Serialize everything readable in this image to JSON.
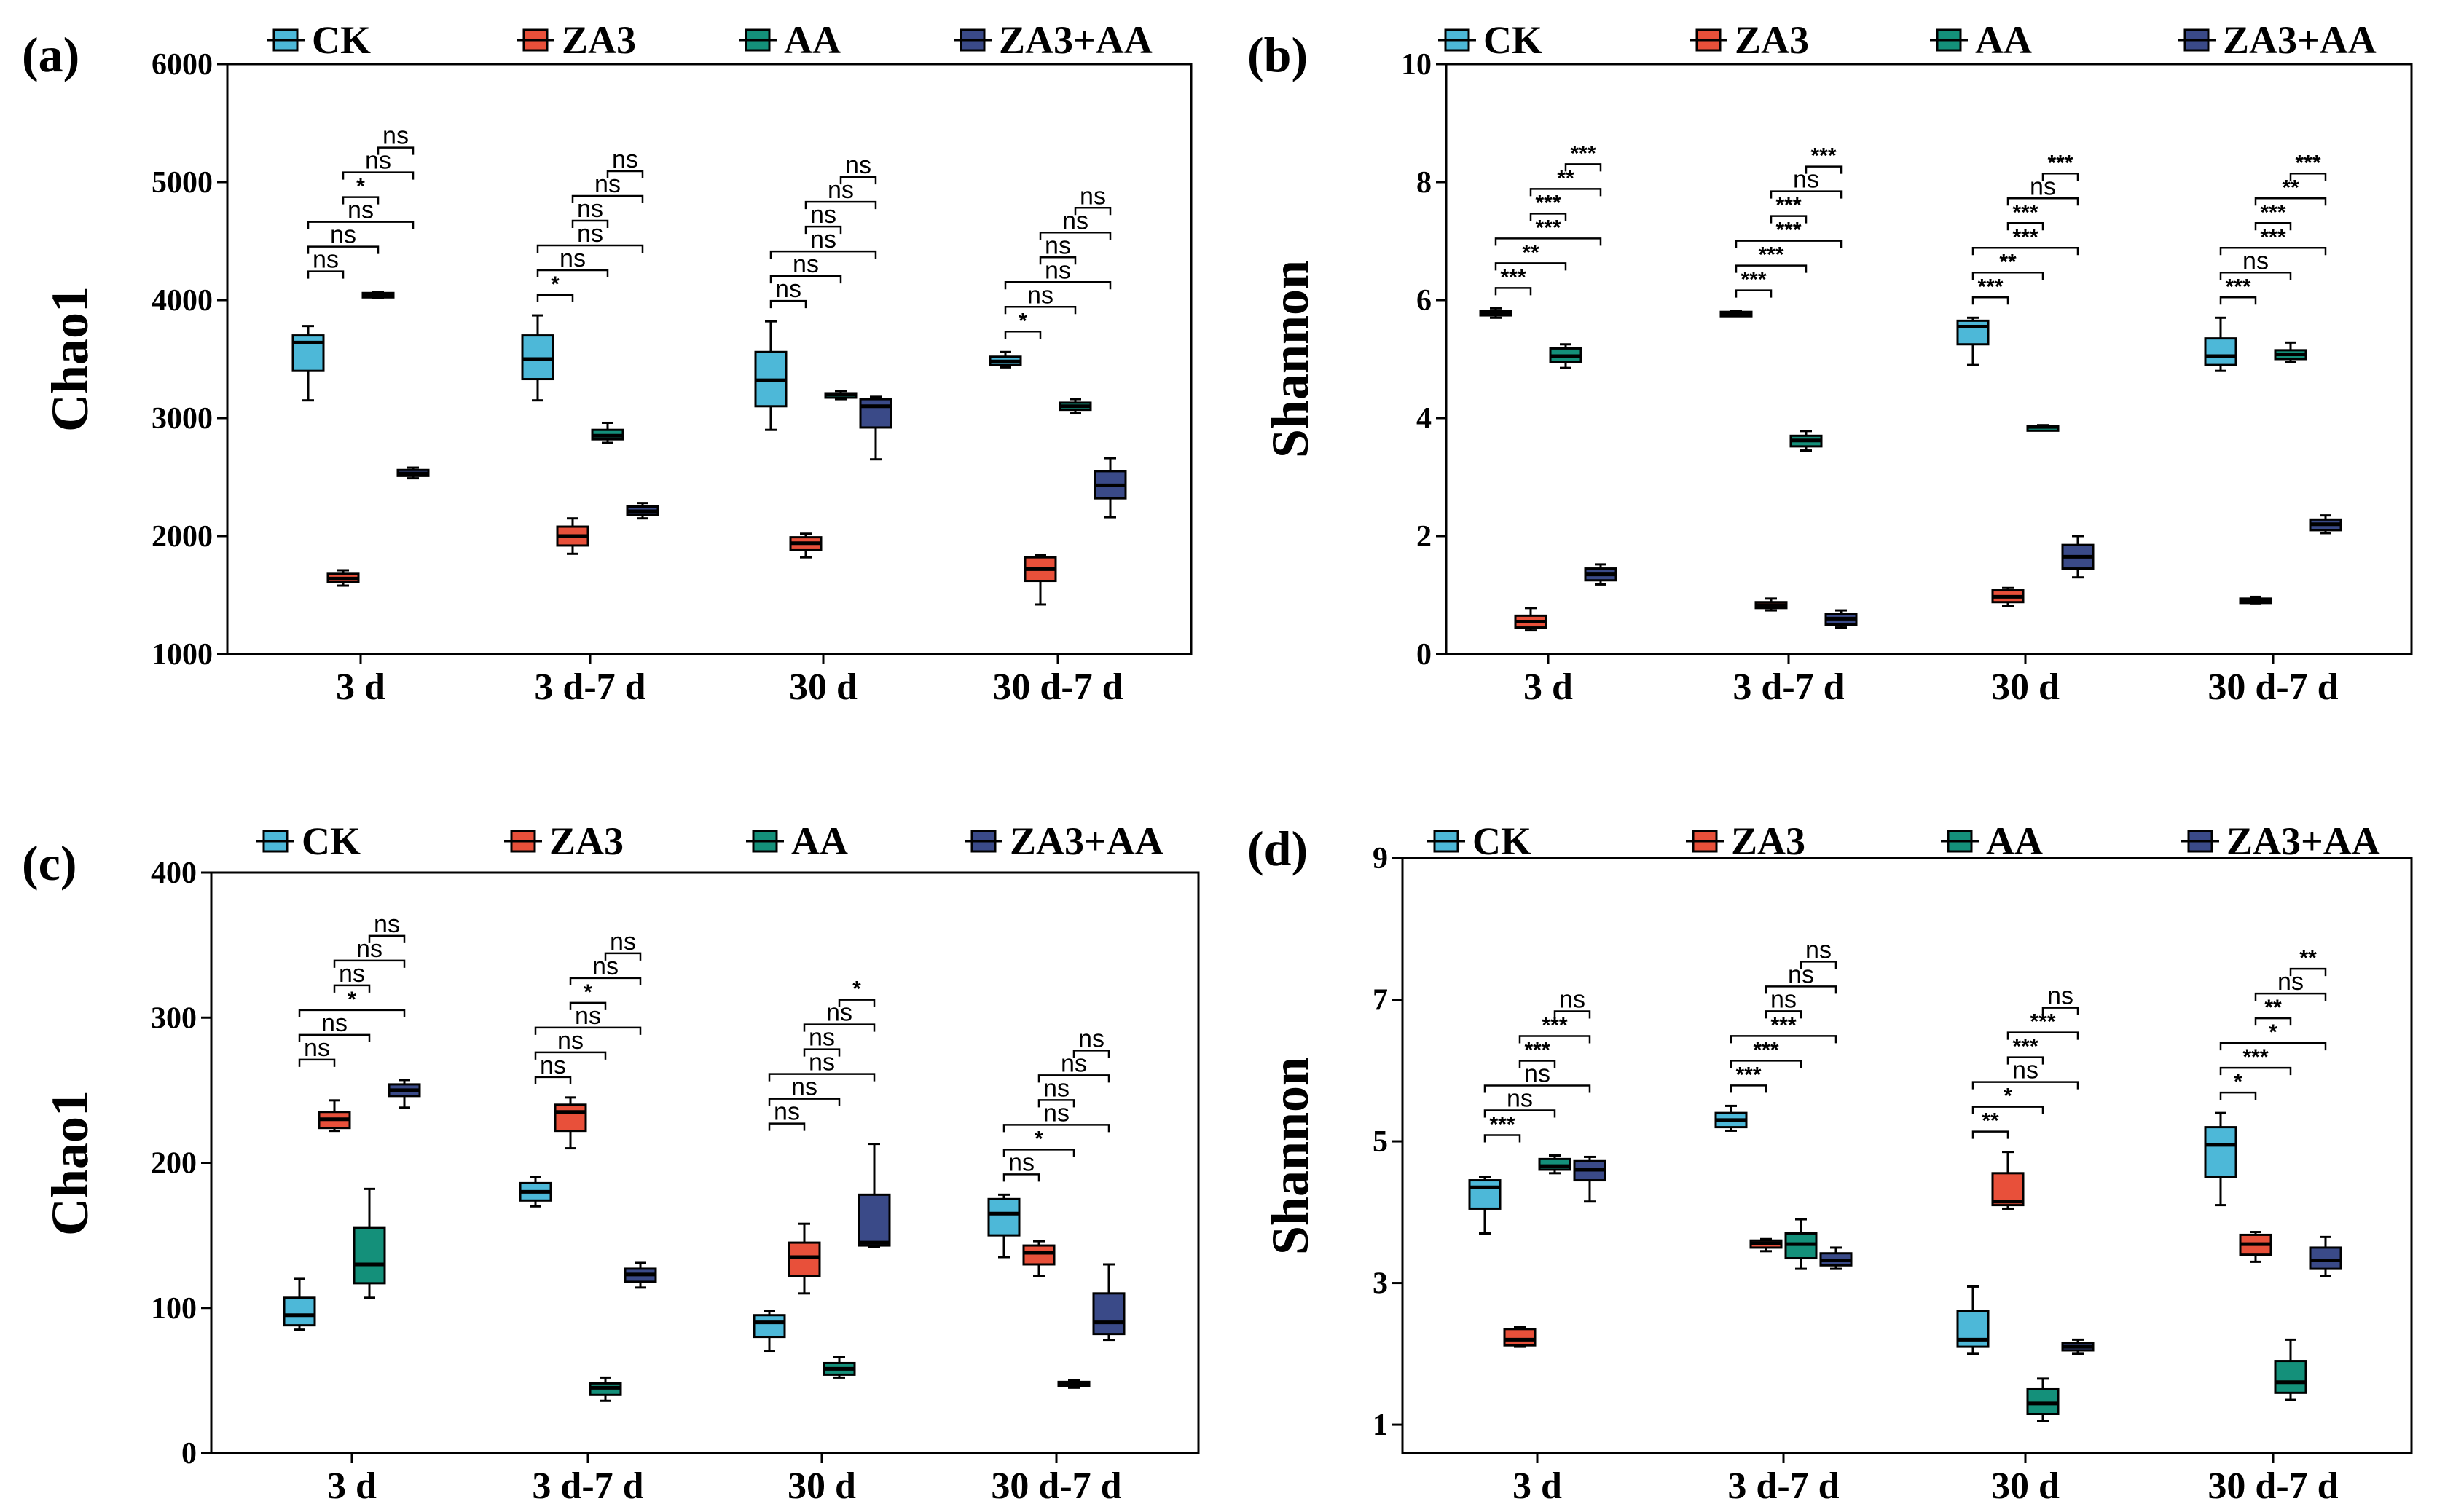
{
  "colors": {
    "CK": "#4DB8D8",
    "ZA3": "#E8503A",
    "AA": "#14907A",
    "ZA3+AA": "#3A4A88"
  },
  "legend_names": [
    "CK",
    "ZA3",
    "AA",
    "ZA3+AA"
  ],
  "categories": [
    "3 d",
    "3 d-7 d",
    "30 d",
    "30 d-7 d"
  ],
  "chart_data": [
    {
      "type": "box",
      "panel": "(a)",
      "ylabel": "Chao1",
      "ylim": [
        1000,
        6000
      ],
      "yticks": [
        "1000",
        "2000",
        "3000",
        "4000",
        "5000",
        "6000"
      ],
      "ytick_values": [
        1000,
        2000,
        3000,
        4000,
        5000,
        6000
      ],
      "series": [
        {
          "name": "CK",
          "boxes": [
            [
              3150,
              3400,
              3640,
              3700,
              3780
            ],
            [
              3150,
              3330,
              3500,
              3700,
              3870
            ],
            [
              2900,
              3100,
              3320,
              3560,
              3820
            ],
            [
              3430,
              3450,
              3480,
              3520,
              3560
            ]
          ]
        },
        {
          "name": "ZA3",
          "boxes": [
            [
              1580,
              1610,
              1640,
              1680,
              1710
            ],
            [
              1850,
              1920,
              2000,
              2080,
              2150
            ],
            [
              1820,
              1880,
              1940,
              1990,
              2020
            ],
            [
              1420,
              1620,
              1720,
              1820,
              1840
            ]
          ]
        },
        {
          "name": "AA",
          "boxes": [
            [
              4020,
              4030,
              4050,
              4060,
              4070
            ],
            [
              2790,
              2820,
              2850,
              2900,
              2960
            ],
            [
              3160,
              3180,
              3200,
              3210,
              3230
            ],
            [
              3040,
              3070,
              3100,
              3130,
              3160
            ]
          ]
        },
        {
          "name": "ZA3+AA",
          "boxes": [
            [
              2490,
              2510,
              2530,
              2560,
              2580
            ],
            [
              2150,
              2180,
              2210,
              2250,
              2280
            ],
            [
              2650,
              2920,
              3100,
              3160,
              3180
            ],
            [
              2160,
              2320,
              2430,
              2550,
              2660
            ]
          ]
        }
      ],
      "significance": [
        [
          [
            "ns",
            "ns",
            "ns",
            "*",
            "ns",
            "ns"
          ],
          [
            "*",
            "ns",
            "ns",
            "ns",
            "ns",
            "ns"
          ],
          [
            "ns",
            "ns",
            "ns",
            "ns",
            "ns",
            "ns"
          ],
          [
            "*",
            "ns",
            "ns",
            "ns",
            "ns",
            "ns"
          ]
        ]
      ]
    },
    {
      "type": "box",
      "panel": "(b)",
      "ylabel": "Shannon",
      "ylim": [
        0,
        10
      ],
      "yticks": [
        "0",
        "2",
        "4",
        "6",
        "8",
        "10"
      ],
      "ytick_values": [
        0,
        2,
        4,
        6,
        8,
        10
      ],
      "series": [
        {
          "name": "CK",
          "boxes": [
            [
              5.7,
              5.74,
              5.78,
              5.82,
              5.86
            ],
            [
              5.74,
              5.76,
              5.78,
              5.8,
              5.82
            ],
            [
              4.9,
              5.25,
              5.55,
              5.65,
              5.7
            ],
            [
              4.8,
              4.9,
              5.05,
              5.35,
              5.7
            ]
          ]
        },
        {
          "name": "ZA3",
          "boxes": [
            [
              0.4,
              0.45,
              0.55,
              0.65,
              0.78
            ],
            [
              0.74,
              0.78,
              0.83,
              0.88,
              0.94
            ],
            [
              0.82,
              0.88,
              0.97,
              1.08,
              1.12
            ],
            [
              0.86,
              0.88,
              0.92,
              0.94,
              0.97
            ]
          ]
        },
        {
          "name": "AA",
          "boxes": [
            [
              4.85,
              4.95,
              5.05,
              5.18,
              5.25
            ],
            [
              3.45,
              3.52,
              3.62,
              3.7,
              3.78
            ],
            [
              3.82,
              3.84,
              3.85,
              3.86,
              3.88
            ],
            [
              4.95,
              5.0,
              5.08,
              5.15,
              5.28
            ]
          ]
        },
        {
          "name": "ZA3+AA",
          "boxes": [
            [
              1.18,
              1.25,
              1.35,
              1.45,
              1.52
            ],
            [
              0.45,
              0.5,
              0.6,
              0.68,
              0.74
            ],
            [
              1.3,
              1.45,
              1.65,
              1.85,
              2.0
            ],
            [
              2.05,
              2.1,
              2.2,
              2.28,
              2.35
            ]
          ]
        }
      ],
      "significance": [
        [
          [
            "***",
            "**",
            "***",
            "***",
            "**",
            "***"
          ],
          [
            "***",
            "***",
            "***",
            "***",
            "ns",
            "***"
          ],
          [
            "***",
            "**",
            "***",
            "***",
            "ns",
            "***"
          ],
          [
            "***",
            "ns",
            "***",
            "***",
            "**",
            "***"
          ]
        ]
      ]
    },
    {
      "type": "box",
      "panel": "(c)",
      "ylabel": "Chao1",
      "ylim": [
        0,
        400
      ],
      "yticks": [
        "0",
        "100",
        "200",
        "300",
        "400"
      ],
      "ytick_values": [
        0,
        100,
        200,
        300,
        400
      ],
      "series": [
        {
          "name": "CK",
          "boxes": [
            [
              85,
              88,
              95,
              107,
              120
            ],
            [
              170,
              174,
              180,
              186,
              190
            ],
            [
              70,
              80,
              90,
              95,
              98
            ],
            [
              135,
              150,
              165,
              175,
              178
            ]
          ]
        },
        {
          "name": "ZA3",
          "boxes": [
            [
              222,
              224,
              230,
              235,
              243
            ],
            [
              210,
              222,
              235,
              240,
              245
            ],
            [
              110,
              122,
              135,
              145,
              158
            ],
            [
              122,
              130,
              138,
              143,
              146
            ]
          ]
        },
        {
          "name": "AA",
          "boxes": [
            [
              107,
              117,
              130,
              155,
              182
            ],
            [
              36,
              40,
              45,
              48,
              52
            ],
            [
              52,
              54,
              58,
              62,
              66
            ],
            [
              45,
              46,
              48,
              49,
              50
            ]
          ]
        },
        {
          "name": "ZA3+AA",
          "boxes": [
            [
              238,
              246,
              250,
              254,
              257
            ],
            [
              114,
              118,
              123,
              127,
              131
            ],
            [
              142,
              143,
              145,
              178,
              213
            ],
            [
              78,
              82,
              90,
              110,
              130
            ]
          ]
        }
      ],
      "significance": [
        [
          [
            "ns",
            "ns",
            "*",
            "ns",
            "ns",
            "ns"
          ],
          [
            "ns",
            "ns",
            "ns",
            "*",
            "ns",
            "ns"
          ],
          [
            "ns",
            "ns",
            "ns",
            "ns",
            "ns",
            "*"
          ],
          [
            "ns",
            "*",
            "ns",
            "ns",
            "ns",
            "ns"
          ]
        ]
      ]
    },
    {
      "type": "box",
      "panel": "(d)",
      "ylabel": "Shannon",
      "ylim": [
        0.6,
        9
      ],
      "yticks": [
        "1",
        "3",
        "5",
        "7",
        "9"
      ],
      "ytick_values": [
        1,
        3,
        5,
        7,
        9
      ],
      "series": [
        {
          "name": "CK",
          "boxes": [
            [
              3.7,
              4.05,
              4.35,
              4.45,
              4.5
            ],
            [
              5.15,
              5.2,
              5.3,
              5.4,
              5.5
            ],
            [
              2.0,
              2.1,
              2.2,
              2.6,
              2.95
            ],
            [
              4.1,
              4.5,
              4.95,
              5.2,
              5.4
            ]
          ]
        },
        {
          "name": "ZA3",
          "boxes": [
            [
              2.1,
              2.12,
              2.2,
              2.35,
              2.38
            ],
            [
              3.45,
              3.5,
              3.56,
              3.6,
              3.62
            ],
            [
              4.05,
              4.1,
              4.15,
              4.55,
              4.85
            ],
            [
              3.3,
              3.4,
              3.55,
              3.68,
              3.72
            ]
          ]
        },
        {
          "name": "AA",
          "boxes": [
            [
              4.55,
              4.6,
              4.65,
              4.75,
              4.8
            ],
            [
              3.2,
              3.35,
              3.55,
              3.7,
              3.9
            ],
            [
              1.05,
              1.15,
              1.3,
              1.5,
              1.65
            ],
            [
              1.35,
              1.45,
              1.6,
              1.9,
              2.2
            ]
          ]
        },
        {
          "name": "ZA3+AA",
          "boxes": [
            [
              4.15,
              4.45,
              4.6,
              4.72,
              4.78
            ],
            [
              3.2,
              3.25,
              3.32,
              3.42,
              3.5
            ],
            [
              2.0,
              2.05,
              2.1,
              2.15,
              2.2
            ],
            [
              3.1,
              3.2,
              3.32,
              3.5,
              3.65
            ]
          ]
        }
      ],
      "significance": [
        [
          [
            "***",
            "ns",
            "ns",
            "***",
            "***",
            "ns"
          ],
          [
            "***",
            "***",
            "***",
            "ns",
            "ns",
            "ns"
          ],
          [
            "**",
            "*",
            "ns",
            "***",
            "***",
            "ns"
          ],
          [
            "*",
            "***",
            "*",
            "**",
            "ns",
            "**"
          ]
        ]
      ]
    }
  ]
}
